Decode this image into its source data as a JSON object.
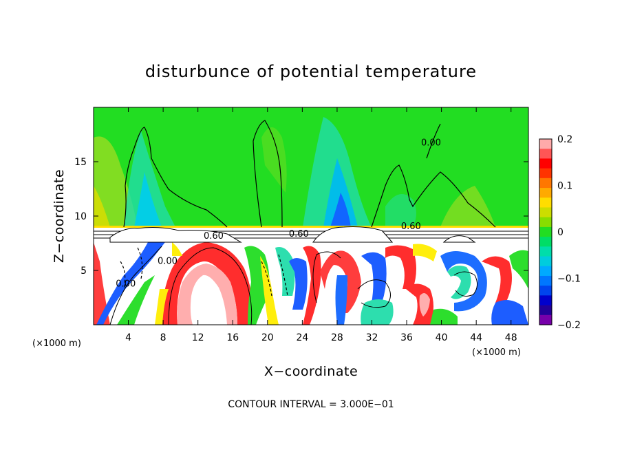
{
  "chart_data": {
    "type": "heatmap",
    "title": "disturbunce of potential temperature",
    "xlabel": "X−coordinate",
    "ylabel": "Z−coordinate",
    "x_unit": "(×1000 m)",
    "x_ticks": [
      "4",
      "8",
      "12",
      "16",
      "20",
      "24",
      "28",
      "32",
      "36",
      "40",
      "44",
      "48"
    ],
    "y_ticks": [
      "5",
      "10",
      "15"
    ],
    "xlim": [
      0,
      50
    ],
    "ylim": [
      0,
      20
    ],
    "colorbar": {
      "range": [
        -0.2,
        0.2
      ],
      "tick_labels": [
        "0.2",
        "0.1",
        "0",
        "−0.1",
        "−0.2"
      ],
      "tick_values": [
        0.2,
        0.1,
        0,
        -0.1,
        -0.2
      ]
    },
    "contour_labels": [
      {
        "text": "0.00",
        "x": 8.5,
        "z": 5.6
      },
      {
        "text": "0.00",
        "x": 3.7,
        "z": 3.5
      },
      {
        "text": "0.60",
        "x": 13.8,
        "z": 7.9
      },
      {
        "text": "0.60",
        "x": 23.6,
        "z": 8.1
      },
      {
        "text": "0.60",
        "x": 36.5,
        "z": 8.8
      },
      {
        "text": "0.00",
        "x": 38.8,
        "z": 16.5
      }
    ],
    "footer": "CONTOUR INTERVAL = 3.000E−01"
  }
}
